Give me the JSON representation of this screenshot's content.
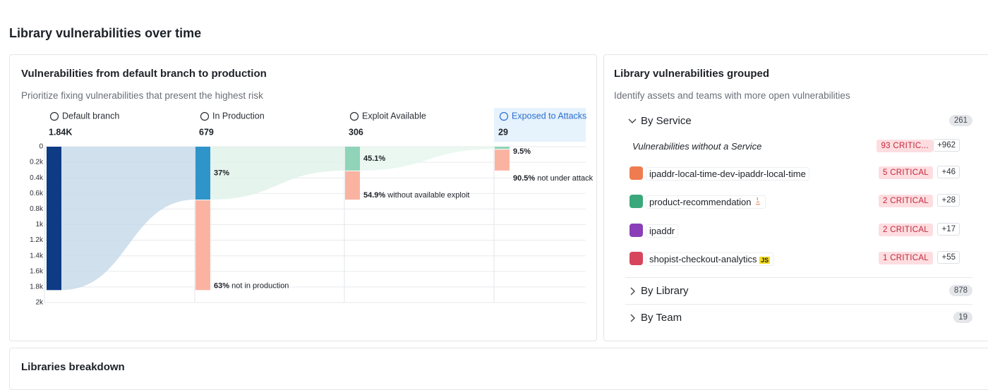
{
  "page": {
    "title": "Library vulnerabilities over time",
    "bottom_title": "Libraries breakdown"
  },
  "funnel": {
    "title": "Vulnerabilities from default branch to production",
    "subtitle": "Prioritize fixing vulnerabilities that present the highest risk",
    "ylim": [
      0,
      2000
    ],
    "yticks": [
      {
        "value": 0,
        "label": "0"
      },
      {
        "value": 200,
        "label": "0.2k"
      },
      {
        "value": 400,
        "label": "0.4k"
      },
      {
        "value": 600,
        "label": "0.6k"
      },
      {
        "value": 800,
        "label": "0.8k"
      },
      {
        "value": 1000,
        "label": "1k"
      },
      {
        "value": 1200,
        "label": "1.2k"
      },
      {
        "value": 1400,
        "label": "1.4k"
      },
      {
        "value": 1600,
        "label": "1.6k"
      },
      {
        "value": 1800,
        "label": "1.8k"
      },
      {
        "value": 2000,
        "label": "2k"
      }
    ],
    "dropped_color": "#fbb3a1",
    "stages": [
      {
        "name": "Default branch",
        "value": 1840,
        "value_label": "1.84K",
        "color": "#0d3b84"
      },
      {
        "name": "In Production",
        "value": 679,
        "color": "#2f94c9",
        "kept_pct": {
          "value": 37,
          "label": "37%"
        },
        "dropped": 1161,
        "dropped_pct": {
          "value": 63,
          "label": "63%"
        },
        "dropped_text": "not in production"
      },
      {
        "name": "Exploit Available",
        "value": 306,
        "color": "#8fd4b8",
        "kept_pct": {
          "value": 45.1,
          "label": "45.1%"
        },
        "dropped": 373,
        "dropped_pct": {
          "value": 54.9,
          "label": "54.9%"
        },
        "dropped_text": "without available exploit"
      },
      {
        "name": "Exposed to Attacks",
        "value": 29,
        "color": "#8fd4b8",
        "highlighted": true,
        "kept_pct": {
          "value": 9.5,
          "label": "9.5%"
        },
        "dropped": 277,
        "dropped_pct": {
          "value": 90.5,
          "label": "90.5%"
        },
        "dropped_text": "not under attack"
      }
    ]
  },
  "grouped": {
    "title": "Library vulnerabilities grouped",
    "subtitle": "Identify assets and teams with more open vulnerabilities",
    "groups": [
      {
        "name": "By Service",
        "count": 261,
        "items": [
          {
            "name": "Vulnerabilities without a Service",
            "critical": "93 CRITIC...",
            "more": "+962"
          },
          {
            "name": "ipaddr-local-time-dev-ipaddr-local-time",
            "critical": "5 CRITICAL",
            "more": "+46"
          },
          {
            "name": "product-recommendation",
            "critical": "2 CRITICAL",
            "more": "+28"
          },
          {
            "name": "ipaddr",
            "critical": "2 CRITICAL",
            "more": "+17"
          },
          {
            "name": "shopist-checkout-analytics",
            "language": "JS",
            "critical": "1 CRITICAL",
            "more": "+55"
          }
        ]
      },
      {
        "name": "By Library",
        "count": 878
      },
      {
        "name": "By Team",
        "count": 19
      }
    ]
  }
}
